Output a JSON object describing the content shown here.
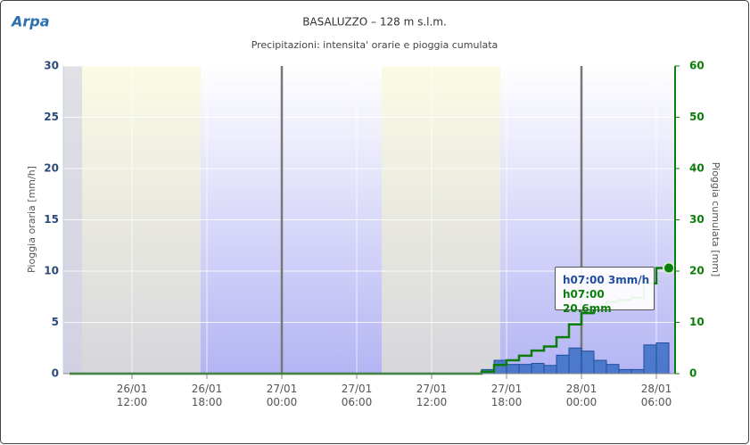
{
  "logo": "Arpa",
  "chart_data": {
    "type": "rain",
    "title": "BASALUZZO – 128 m s.l.m.",
    "subtitle": "Precipitazioni: intensita' orarie e pioggia cumulata",
    "y_label": "Pioggia oraria [mm/h]",
    "y2_label": "Pioggia cumulata [mm]",
    "xlim": [
      "26/01 06:30",
      "28/01 07:30"
    ],
    "xticks": [
      "26/01\n12:00",
      "26/01\n18:00",
      "27/01\n00:00",
      "27/01\n06:00",
      "27/01\n12:00",
      "27/01\n18:00",
      "28/01\n00:00",
      "28/01\n06:00"
    ],
    "plot_bands": [
      [
        "26/01 08:00",
        "26/01 17:30"
      ],
      [
        "27/01 08:00",
        "27/01 17:30"
      ]
    ],
    "plot_lines": [
      "27/01 00:00",
      "28/01 00:00"
    ],
    "ylim": [
      0,
      30
    ],
    "yticks": [
      0,
      5,
      10,
      15,
      20,
      25,
      30
    ],
    "y2lim": [
      0,
      60
    ],
    "y2ticks": [
      0,
      10,
      20,
      30,
      40,
      50,
      60
    ],
    "grid": true,
    "series": [
      {
        "name": "Pioggia oraria",
        "color": "#3a6fc4",
        "x": [
          "27/01 17:00",
          "27/01 18:00",
          "27/01 19:00",
          "27/01 20:00",
          "27/01 21:00",
          "27/01 22:00",
          "27/01 23:00",
          "28/01 00:00",
          "28/01 01:00",
          "28/01 02:00",
          "28/01 03:00",
          "28/01 04:00",
          "28/01 05:00",
          "28/01 06:00",
          "28/01 07:00"
        ],
        "values": [
          0.4,
          1.3,
          0.9,
          0.9,
          1.0,
          0.8,
          1.8,
          2.5,
          2.2,
          1.3,
          0.9,
          0.4,
          0.4,
          2.8,
          3
        ]
      },
      {
        "name": "Pioggia cumulata",
        "color": "#0a7d0a",
        "axis": "y2",
        "x": [
          "26/01 07:00",
          "27/01 16:00",
          "27/01 17:00",
          "27/01 18:00",
          "27/01 19:00",
          "27/01 20:00",
          "27/01 21:00",
          "27/01 22:00",
          "27/01 23:00",
          "28/01 00:00",
          "28/01 01:00",
          "28/01 02:00",
          "28/01 03:00",
          "28/01 04:00",
          "28/01 05:00",
          "28/01 06:00",
          "28/01 07:00"
        ],
        "values": [
          0,
          0,
          0.4,
          1.7,
          2.6,
          3.5,
          4.5,
          5.3,
          7.1,
          9.6,
          11.8,
          13.1,
          14.0,
          14.4,
          14.8,
          17.6,
          20.6
        ]
      }
    ],
    "tooltip": [
      "h07:00 3mm/h",
      "h07:00 20.6mm"
    ]
  }
}
